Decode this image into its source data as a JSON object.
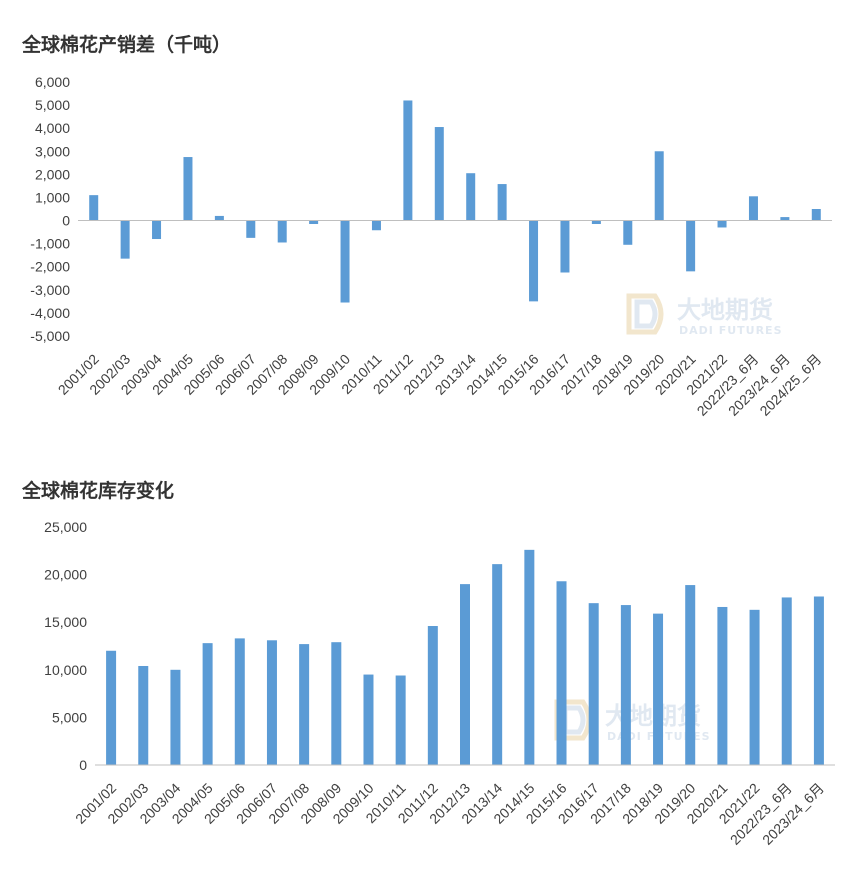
{
  "chart_data": [
    {
      "type": "bar",
      "title": "全球棉花产销差（千吨）",
      "xlabel": "",
      "ylabel": "",
      "ylim": [
        -5000,
        6000
      ],
      "yticks": [
        "6,000",
        "5,000",
        "4,000",
        "3,000",
        "2,000",
        "1,000",
        "0",
        "-1,000",
        "-2,000",
        "-3,000",
        "-4,000",
        "-5,000"
      ],
      "grid": false,
      "legend": "none",
      "bar_color": "#5B9BD5",
      "categories": [
        "2001/02",
        "2002/03",
        "2003/04",
        "2004/05",
        "2005/06",
        "2006/07",
        "2007/08",
        "2008/09",
        "2009/10",
        "2010/11",
        "2011/12",
        "2012/13",
        "2013/14",
        "2014/15",
        "2015/16",
        "2016/17",
        "2017/18",
        "2018/19",
        "2019/20",
        "2020/21",
        "2021/22",
        "2022/23_6月",
        "2023/24_6月",
        "2024/25_6月"
      ],
      "values": [
        1100,
        -1650,
        -800,
        2750,
        200,
        -750,
        -950,
        -150,
        -3550,
        -420,
        5200,
        4050,
        2050,
        1580,
        -3500,
        -2250,
        -150,
        -1050,
        3000,
        -2200,
        -300,
        1050,
        150,
        500
      ]
    },
    {
      "type": "bar",
      "title": "全球棉花库存变化",
      "xlabel": "",
      "ylabel": "",
      "ylim": [
        0,
        25000
      ],
      "yticks": [
        "25,000",
        "20,000",
        "15,000",
        "10,000",
        "5,000",
        "0"
      ],
      "grid": false,
      "legend": "none",
      "bar_color": "#5B9BD5",
      "categories": [
        "2001/02",
        "2002/03",
        "2003/04",
        "2004/05",
        "2005/06",
        "2006/07",
        "2007/08",
        "2008/09",
        "2009/10",
        "2010/11",
        "2011/12",
        "2012/13",
        "2013/14",
        "2014/15",
        "2015/16",
        "2016/17",
        "2017/18",
        "2018/19",
        "2019/20",
        "2020/21",
        "2021/22",
        "2022/23_6月",
        "2023/24_6月"
      ],
      "values": [
        12000,
        10400,
        10000,
        12800,
        13300,
        13100,
        12700,
        12900,
        9500,
        9400,
        14600,
        19000,
        21100,
        22600,
        19300,
        17000,
        16800,
        15900,
        18900,
        16600,
        16300,
        17600,
        17700
      ]
    }
  ],
  "watermark": {
    "name": "大地期货",
    "english": "DADI FUTURES",
    "icon": "dadi-logo-icon",
    "color": "#c8d6e6"
  }
}
